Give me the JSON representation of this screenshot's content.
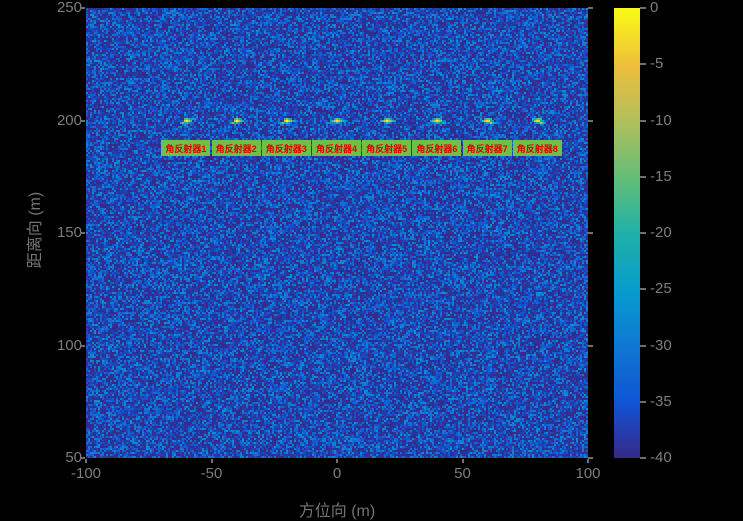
{
  "figure": {
    "background": "#000000",
    "axis_text_color": "#7d7d7d"
  },
  "chart_data": {
    "type": "heatmap",
    "title": "",
    "xlabel": "方位向 (m)",
    "ylabel": "距离向 (m)",
    "xlim": [
      -100,
      100
    ],
    "ylim": [
      50,
      250
    ],
    "xticks": [
      -100,
      -50,
      0,
      50,
      100
    ],
    "yticks": [
      50,
      100,
      150,
      200,
      250
    ],
    "grid": false,
    "noise_floor_db": [
      -40,
      -27
    ],
    "colorbar": {
      "range": [
        -40,
        0
      ],
      "ticks": [
        0,
        -5,
        -10,
        -15,
        -20,
        -25,
        -30,
        -35,
        -40
      ],
      "colormap": "parula",
      "stops": [
        {
          "t": 0.0,
          "color": "#352a87"
        },
        {
          "t": 0.12,
          "color": "#1153d4"
        },
        {
          "t": 0.25,
          "color": "#0e78d2"
        },
        {
          "t": 0.37,
          "color": "#079ccf"
        },
        {
          "t": 0.5,
          "color": "#20b1a8"
        },
        {
          "t": 0.62,
          "color": "#62be78"
        },
        {
          "t": 0.75,
          "color": "#b1bf5b"
        },
        {
          "t": 0.87,
          "color": "#eebe3c"
        },
        {
          "t": 1.0,
          "color": "#f9fb14"
        }
      ]
    },
    "reflectors": [
      {
        "label": "角反射器1",
        "azimuth_m": -60,
        "range_m": 200,
        "tilt_deg": -18
      },
      {
        "label": "角反射器2",
        "azimuth_m": -40,
        "range_m": 200,
        "tilt_deg": -13
      },
      {
        "label": "角反射器3",
        "azimuth_m": -20,
        "range_m": 200,
        "tilt_deg": -8
      },
      {
        "label": "角反射器4",
        "azimuth_m": 0,
        "range_m": 200,
        "tilt_deg": -3
      },
      {
        "label": "角反射器5",
        "azimuth_m": 20,
        "range_m": 200,
        "tilt_deg": 3
      },
      {
        "label": "角反射器6",
        "azimuth_m": 40,
        "range_m": 200,
        "tilt_deg": 8
      },
      {
        "label": "角反射器7",
        "azimuth_m": 60,
        "range_m": 200,
        "tilt_deg": 13
      },
      {
        "label": "角反射器8",
        "azimuth_m": 80,
        "range_m": 200,
        "tilt_deg": 18
      }
    ],
    "reflector_label_style": {
      "background": "#6fc047",
      "text_color": "#e00000"
    }
  }
}
